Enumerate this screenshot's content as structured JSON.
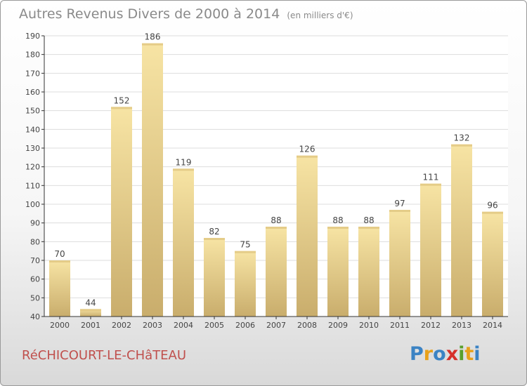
{
  "title": {
    "main": "Autres Revenus Divers de 2000 à 2014",
    "unit": "(en milliers d'€)"
  },
  "commune": "RéCHICOURT-LE-CHâTEAU",
  "logo": {
    "text": "Proxiti",
    "letters": [
      {
        "ch": "P",
        "color": "#3b83c4"
      },
      {
        "ch": "r",
        "color": "#e8a11a"
      },
      {
        "ch": "o",
        "color": "#3b83c4"
      },
      {
        "ch": "x",
        "color": "#d62f2a"
      },
      {
        "ch": "i",
        "color": "#5aa02c"
      },
      {
        "ch": "t",
        "color": "#e8a11a"
      },
      {
        "ch": "i",
        "color": "#3b83c4"
      }
    ]
  },
  "chart_data": {
    "type": "bar",
    "title": "Autres Revenus Divers de 2000 à 2014",
    "subtitle": "(en milliers d'€)",
    "categories": [
      "2000",
      "2001",
      "2002",
      "2003",
      "2004",
      "2005",
      "2006",
      "2007",
      "2008",
      "2009",
      "2010",
      "2011",
      "2012",
      "2013",
      "2014"
    ],
    "values": [
      70,
      44,
      152,
      186,
      119,
      82,
      75,
      88,
      126,
      88,
      88,
      97,
      111,
      132,
      96
    ],
    "ylim": [
      40,
      190
    ],
    "yticks": [
      40,
      50,
      60,
      70,
      80,
      90,
      100,
      110,
      120,
      130,
      140,
      150,
      160,
      170,
      180,
      190
    ],
    "grid": true,
    "xlabel": "",
    "ylabel": "",
    "colors": {
      "bar_light": "#f7e4a4",
      "bar_dark": "#c9ad6c",
      "grid": "#dddddd",
      "axis": "#333333",
      "label": "#444444"
    }
  }
}
